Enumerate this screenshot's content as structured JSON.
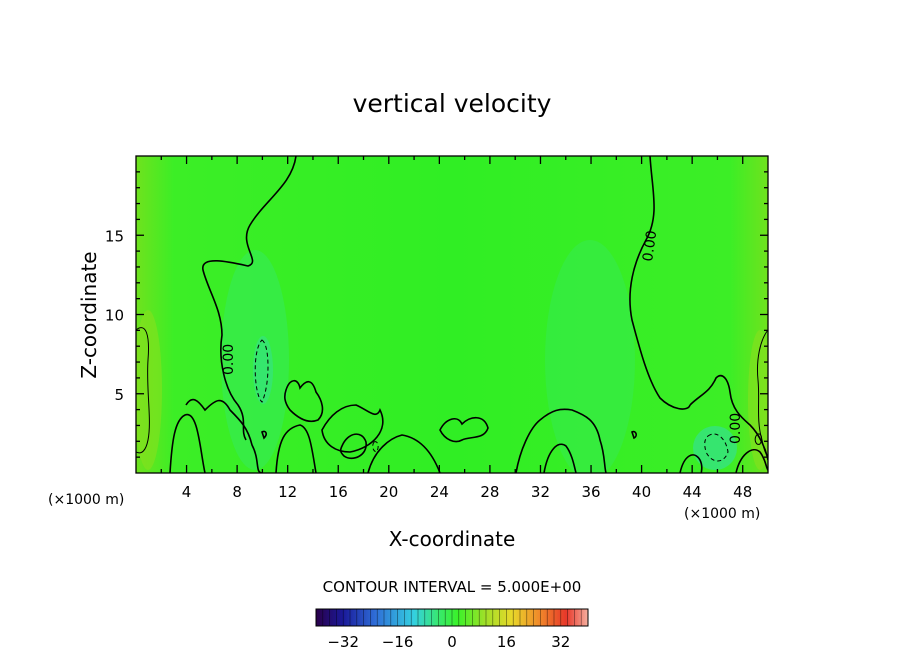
{
  "chart_data": {
    "type": "contour",
    "title": "vertical velocity",
    "xlabel": "X-coordinate",
    "ylabel": "Z-coordinate",
    "x_unit_left": "(×1000 m)",
    "x_unit_right": "(×1000 m)",
    "xlim": [
      0,
      50
    ],
    "ylim": [
      0,
      20
    ],
    "xticks": [
      4,
      8,
      12,
      16,
      20,
      24,
      28,
      32,
      36,
      40,
      44,
      48
    ],
    "yticks": [
      5,
      10,
      15
    ],
    "contour_labels": [
      "0.00",
      "0.00",
      "0.00"
    ],
    "contour_interval_text": "CONTOUR INTERVAL = 5.000E+00",
    "colorbar": {
      "range": [
        -40,
        40
      ],
      "ticks": [
        -32,
        -16,
        0,
        16,
        32
      ],
      "colors": [
        "#2a004a",
        "#1a1a9a",
        "#2f6fd8",
        "#34d0e0",
        "#38e870",
        "#3af22a",
        "#9ee028",
        "#e8d82a",
        "#f08a2a",
        "#e8382a",
        "#f5b0a0"
      ]
    },
    "colors": {
      "field_base": "#33ee22",
      "field_light": "#7ee31e",
      "field_cool": "#35e86a"
    }
  }
}
